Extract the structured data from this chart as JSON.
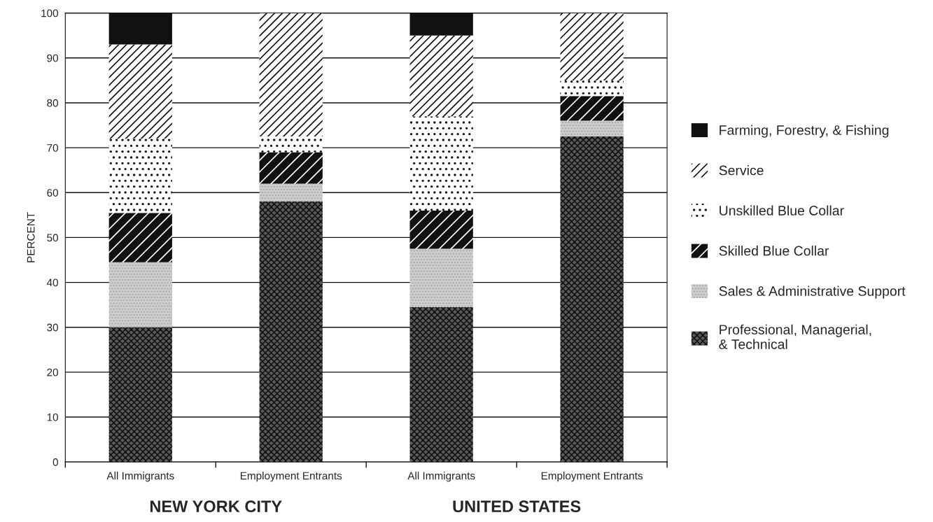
{
  "chart_data": {
    "type": "bar",
    "stacked": true,
    "ylabel": "PERCENT",
    "categories": [
      "All Immigrants",
      "Employment Entrants",
      "All Immigrants",
      "Employment Entrants"
    ],
    "series": [
      {
        "name": "Professional, Managerial,\n& Technical",
        "color": "#5a5a5a",
        "values": [
          30,
          58,
          34.5,
          72.5
        ]
      },
      {
        "name": "Sales & Administrative Support",
        "color": "#cfcfcf",
        "values": [
          14.5,
          4,
          13,
          3.5
        ]
      },
      {
        "name": "Skilled Blue Collar",
        "color": "#111111",
        "values": [
          11,
          7,
          8.5,
          5.5
        ]
      },
      {
        "name": "Unskilled Blue Collar",
        "color": "#ffffff",
        "values": [
          16.5,
          3.5,
          21,
          3.5
        ]
      },
      {
        "name": "Service",
        "color": "#ffffff",
        "values": [
          21,
          27.5,
          18,
          15
        ]
      },
      {
        "name": "Farming, Forestry, & Fishing",
        "color": "#111111",
        "values": [
          7,
          0,
          5,
          0
        ]
      }
    ],
    "ylim": [
      0,
      100
    ],
    "yticks": [
      0,
      10,
      20,
      30,
      40,
      50,
      60,
      70,
      80,
      90,
      100
    ],
    "grid": "y",
    "legend": "right",
    "annotations": [
      "NEW YORK CITY",
      "UNITED STATES"
    ]
  }
}
